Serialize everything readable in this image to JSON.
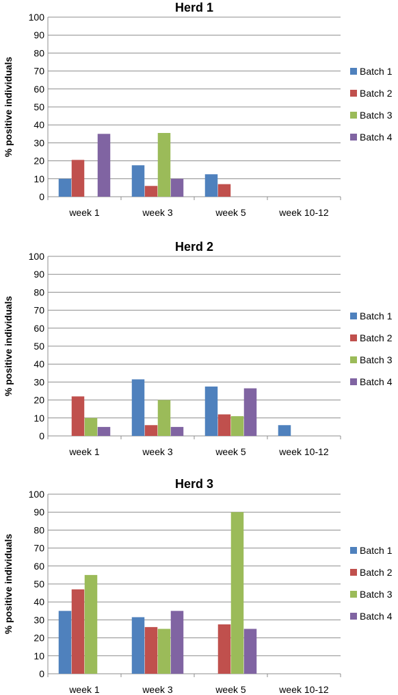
{
  "chart_data": [
    {
      "type": "bar",
      "title": "Herd 1",
      "xlabel": "",
      "ylabel": "% positive individuals",
      "ylim": [
        0,
        100
      ],
      "yticks": [
        0,
        10,
        20,
        30,
        40,
        50,
        60,
        70,
        80,
        90,
        100
      ],
      "categories": [
        "week 1",
        "week 3",
        "week 5",
        "week 10-12"
      ],
      "series": [
        {
          "name": "Batch 1",
          "color": "#4f81bd",
          "values": [
            10,
            17.5,
            12.5,
            0
          ]
        },
        {
          "name": "Batch 2",
          "color": "#c0504d",
          "values": [
            20.5,
            6,
            7,
            0
          ]
        },
        {
          "name": "Batch 3",
          "color": "#9bbb59",
          "values": [
            0,
            35.5,
            0,
            0
          ]
        },
        {
          "name": "Batch 4",
          "color": "#8064a2",
          "values": [
            35,
            10,
            0,
            0
          ]
        }
      ],
      "legend": "right",
      "grid": true
    },
    {
      "type": "bar",
      "title": "Herd 2",
      "xlabel": "",
      "ylabel": "% positive individuals",
      "ylim": [
        0,
        100
      ],
      "yticks": [
        0,
        10,
        20,
        30,
        40,
        50,
        60,
        70,
        80,
        90,
        100
      ],
      "categories": [
        "week 1",
        "week 3",
        "week 5",
        "week 10-12"
      ],
      "series": [
        {
          "name": "Batch 1",
          "color": "#4f81bd",
          "values": [
            0,
            31.5,
            27.5,
            6
          ]
        },
        {
          "name": "Batch 2",
          "color": "#c0504d",
          "values": [
            22,
            6,
            12,
            0
          ]
        },
        {
          "name": "Batch 3",
          "color": "#9bbb59",
          "values": [
            10,
            20,
            11,
            0
          ]
        },
        {
          "name": "Batch 4",
          "color": "#8064a2",
          "values": [
            5,
            5,
            26.5,
            0
          ]
        }
      ],
      "legend": "right",
      "grid": true
    },
    {
      "type": "bar",
      "title": "Herd 3",
      "xlabel": "",
      "ylabel": "% positive individuals",
      "ylim": [
        0,
        100
      ],
      "yticks": [
        0,
        10,
        20,
        30,
        40,
        50,
        60,
        70,
        80,
        90,
        100
      ],
      "categories": [
        "week 1",
        "week 3",
        "week 5",
        "week 10-12"
      ],
      "series": [
        {
          "name": "Batch 1",
          "color": "#4f81bd",
          "values": [
            35,
            31.5,
            0,
            0
          ]
        },
        {
          "name": "Batch 2",
          "color": "#c0504d",
          "values": [
            47,
            26,
            27.5,
            0
          ]
        },
        {
          "name": "Batch 3",
          "color": "#9bbb59",
          "values": [
            55,
            25,
            90,
            0
          ]
        },
        {
          "name": "Batch 4",
          "color": "#8064a2",
          "values": [
            0,
            35,
            25,
            0
          ]
        }
      ],
      "legend": "right",
      "grid": true
    }
  ]
}
